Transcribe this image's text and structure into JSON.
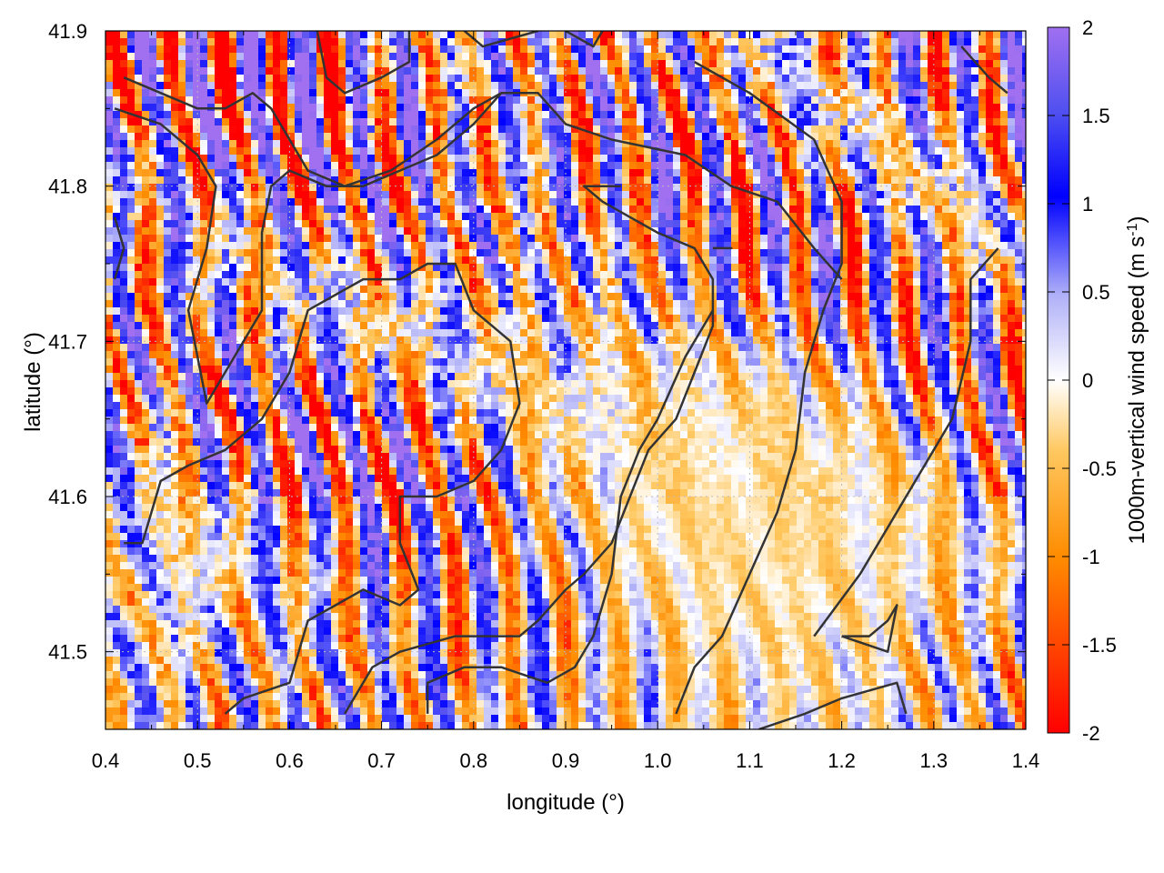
{
  "chart_data": {
    "type": "heatmap",
    "title": "",
    "xlabel": "longitude (°)",
    "ylabel": "latitude (°)",
    "xlim": [
      0.4,
      1.4
    ],
    "ylim": [
      41.45,
      41.9
    ],
    "xticks": [
      "0.4",
      "0.5",
      "0.6",
      "0.7",
      "0.8",
      "0.9",
      "1.0",
      "1.1",
      "1.2",
      "1.3",
      "1.4"
    ],
    "yticks": [
      "41.5",
      "41.6",
      "41.7",
      "41.8",
      "41.9"
    ],
    "grid": true,
    "colorbar": {
      "label": "1000m-vertical wind speed (m s",
      "label_sup": "-1",
      "label_end": ")",
      "range": [
        -2,
        2
      ],
      "ticks": [
        "2",
        "1.5",
        "1",
        "0.5",
        "0",
        "-0.5",
        "-1",
        "-1.5",
        "-2"
      ],
      "colors": [
        "#ff0000",
        "#ff8c00",
        "#ffa500",
        "#ffffff",
        "#0000ff",
        "#a070f0"
      ]
    },
    "field_description": "1000 m vertical wind speed, values spanning -2 to 2 m/s; strong alternating updraft/downdraft bands in west and north, weak values in southeast basin",
    "contours": [
      [
        [
          0.42,
          41.87
        ],
        [
          0.5,
          41.85
        ],
        [
          0.53,
          41.85
        ],
        [
          0.56,
          41.86
        ],
        [
          0.58,
          41.85
        ],
        [
          0.6,
          41.83
        ],
        [
          0.62,
          41.81
        ],
        [
          0.66,
          41.8
        ],
        [
          0.71,
          41.81
        ],
        [
          0.76,
          41.83
        ],
        [
          0.8,
          41.85
        ],
        [
          0.83,
          41.86
        ],
        [
          0.87,
          41.86
        ],
        [
          0.9,
          41.84
        ],
        [
          0.95,
          41.83
        ],
        [
          1.03,
          41.82
        ],
        [
          1.08,
          41.8
        ],
        [
          1.13,
          41.79
        ],
        [
          1.17,
          41.76
        ],
        [
          1.2,
          41.74
        ]
      ],
      [
        [
          0.41,
          41.85
        ],
        [
          0.46,
          41.84
        ],
        [
          0.5,
          41.82
        ],
        [
          0.52,
          41.8
        ],
        [
          0.51,
          41.76
        ],
        [
          0.49,
          41.72
        ],
        [
          0.5,
          41.69
        ],
        [
          0.51,
          41.66
        ],
        [
          0.54,
          41.69
        ],
        [
          0.57,
          41.72
        ],
        [
          0.57,
          41.77
        ],
        [
          0.58,
          41.8
        ],
        [
          0.6,
          41.81
        ],
        [
          0.64,
          41.8
        ],
        [
          0.68,
          41.8
        ],
        [
          0.72,
          41.81
        ],
        [
          0.76,
          41.82
        ],
        [
          0.8,
          41.84
        ],
        [
          0.83,
          41.86
        ],
        [
          0.86,
          41.86
        ]
      ],
      [
        [
          0.63,
          41.9
        ],
        [
          0.64,
          41.87
        ],
        [
          0.66,
          41.86
        ],
        [
          0.7,
          41.87
        ],
        [
          0.73,
          41.88
        ],
        [
          0.73,
          41.9
        ]
      ],
      [
        [
          0.79,
          41.9
        ],
        [
          0.81,
          41.89
        ],
        [
          0.87,
          41.9
        ]
      ],
      [
        [
          0.9,
          41.9
        ],
        [
          0.93,
          41.89
        ],
        [
          0.94,
          41.9
        ]
      ],
      [
        [
          0.42,
          41.57
        ],
        [
          0.44,
          41.57
        ],
        [
          0.46,
          41.61
        ],
        [
          0.49,
          41.62
        ],
        [
          0.53,
          41.63
        ],
        [
          0.57,
          41.65
        ],
        [
          0.6,
          41.68
        ],
        [
          0.62,
          41.72
        ],
        [
          0.65,
          41.73
        ],
        [
          0.68,
          41.74
        ],
        [
          0.72,
          41.74
        ],
        [
          0.75,
          41.75
        ],
        [
          0.78,
          41.75
        ],
        [
          0.8,
          41.72
        ],
        [
          0.84,
          41.7
        ],
        [
          0.85,
          41.66
        ],
        [
          0.83,
          41.63
        ],
        [
          0.8,
          41.61
        ],
        [
          0.76,
          41.6
        ],
        [
          0.72,
          41.6
        ],
        [
          0.72,
          41.57
        ],
        [
          0.74,
          41.54
        ],
        [
          0.72,
          41.53
        ],
        [
          0.68,
          41.54
        ],
        [
          0.65,
          41.53
        ],
        [
          0.62,
          41.52
        ],
        [
          0.61,
          41.5
        ],
        [
          0.6,
          41.48
        ],
        [
          0.55,
          41.47
        ],
        [
          0.53,
          41.46
        ]
      ],
      [
        [
          0.66,
          41.46
        ],
        [
          0.69,
          41.49
        ],
        [
          0.72,
          41.5
        ],
        [
          0.78,
          41.51
        ],
        [
          0.82,
          41.51
        ],
        [
          0.85,
          41.51
        ],
        [
          0.87,
          41.52
        ],
        [
          0.9,
          41.54
        ],
        [
          0.92,
          41.55
        ],
        [
          0.95,
          41.57
        ],
        [
          0.97,
          41.6
        ],
        [
          0.99,
          41.63
        ],
        [
          1.02,
          41.65
        ],
        [
          1.04,
          41.68
        ],
        [
          1.06,
          41.71
        ],
        [
          1.06,
          41.74
        ],
        [
          1.04,
          41.76
        ],
        [
          1.0,
          41.77
        ],
        [
          0.97,
          41.78
        ],
        [
          0.94,
          41.79
        ],
        [
          0.92,
          41.8
        ],
        [
          0.96,
          41.8
        ]
      ],
      [
        [
          0.75,
          41.46
        ],
        [
          0.75,
          41.48
        ],
        [
          0.79,
          41.49
        ],
        [
          0.83,
          41.49
        ],
        [
          0.88,
          41.48
        ],
        [
          0.91,
          41.49
        ],
        [
          0.93,
          41.51
        ],
        [
          0.95,
          41.55
        ],
        [
          0.96,
          41.6
        ],
        [
          0.98,
          41.63
        ],
        [
          1.0,
          41.65
        ],
        [
          1.03,
          41.69
        ],
        [
          1.06,
          41.72
        ]
      ],
      [
        [
          1.02,
          41.46
        ],
        [
          1.04,
          41.49
        ],
        [
          1.07,
          41.51
        ],
        [
          1.1,
          41.55
        ],
        [
          1.13,
          41.59
        ],
        [
          1.15,
          41.63
        ],
        [
          1.16,
          41.68
        ],
        [
          1.18,
          41.72
        ],
        [
          1.2,
          41.75
        ],
        [
          1.2,
          41.79
        ],
        [
          1.17,
          41.83
        ],
        [
          1.1,
          41.86
        ],
        [
          1.04,
          41.88
        ]
      ],
      [
        [
          1.11,
          41.45
        ],
        [
          1.16,
          41.46
        ],
        [
          1.2,
          41.47
        ],
        [
          1.26,
          41.48
        ],
        [
          1.27,
          41.46
        ]
      ],
      [
        [
          1.17,
          41.51
        ],
        [
          1.22,
          41.55
        ],
        [
          1.25,
          41.58
        ],
        [
          1.27,
          41.6
        ],
        [
          1.3,
          41.63
        ],
        [
          1.32,
          41.65
        ],
        [
          1.34,
          41.7
        ],
        [
          1.34,
          41.74
        ],
        [
          1.37,
          41.76
        ]
      ],
      [
        [
          1.2,
          41.51
        ],
        [
          1.23,
          41.51
        ],
        [
          1.25,
          41.52
        ],
        [
          1.26,
          41.53
        ],
        [
          1.25,
          41.5
        ],
        [
          1.2,
          41.51
        ]
      ],
      [
        [
          1.06,
          41.76
        ],
        [
          1.07,
          41.76
        ],
        [
          1.08,
          41.76
        ],
        [
          1.06,
          41.76
        ]
      ],
      [
        [
          1.33,
          41.89
        ],
        [
          1.36,
          41.87
        ],
        [
          1.38,
          41.86
        ]
      ],
      [
        [
          0.41,
          41.78
        ],
        [
          0.42,
          41.76
        ],
        [
          0.41,
          41.74
        ]
      ]
    ]
  }
}
